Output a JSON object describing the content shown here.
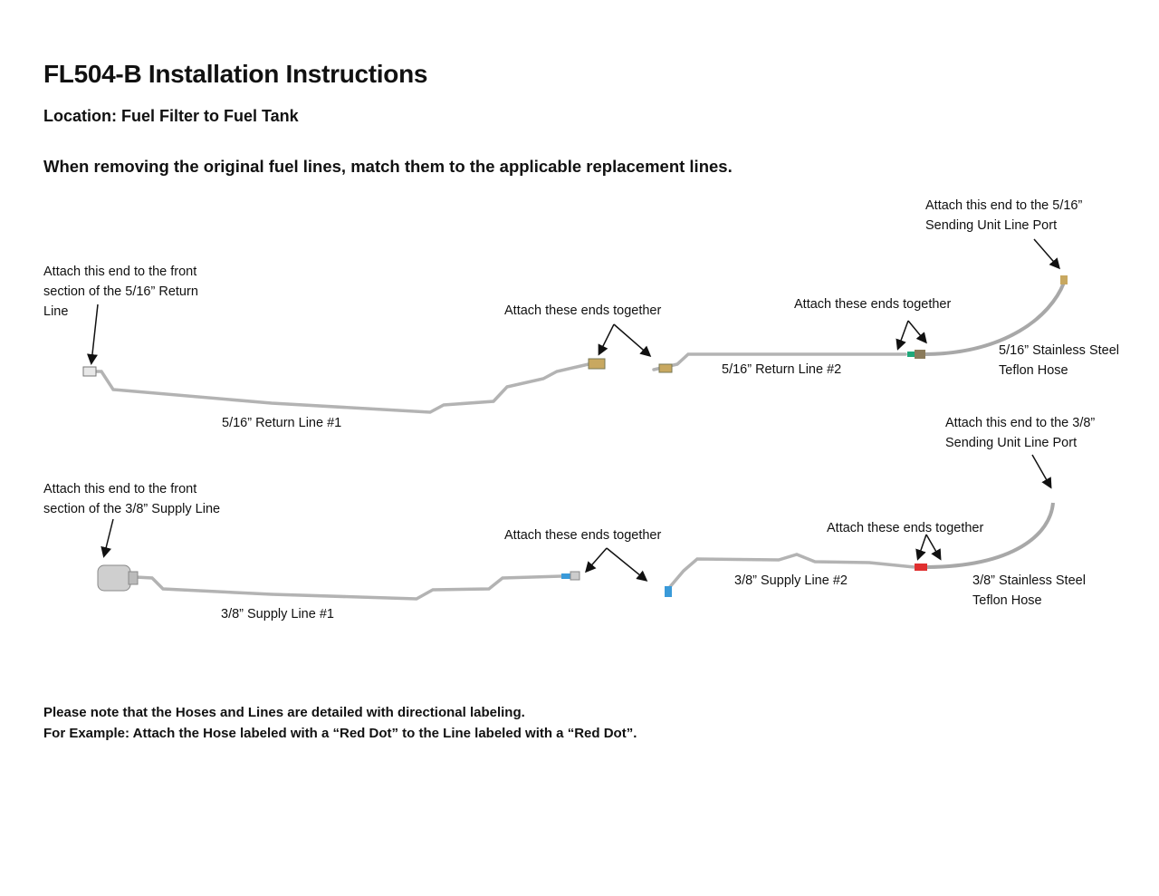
{
  "document": {
    "title": "FL504-B Installation Instructions",
    "location": "Location: Fuel Filter to Fuel Tank",
    "instruction": "When removing the original fuel lines, match them to the applicable replacement lines.",
    "notes": [
      "Please note that the Hoses and Lines are detailed with directional labeling.",
      "For Example: Attach the Hose labeled with a “Red Dot” to the Line labeled with a “Red Dot”."
    ]
  },
  "return_diagram": {
    "front_callout": [
      "Attach this end to the front",
      "section of the 5/16” Return",
      "Line"
    ],
    "join_callout_1": "Attach these ends together",
    "join_callout_2": "Attach  these ends together",
    "port_callout": [
      "Attach this end to the 5/16”",
      "Sending Unit Line Port"
    ],
    "line_1": "5/16” Return Line #1",
    "line_2": "5/16” Return Line #2",
    "hose": [
      "5/16” Stainless Steel",
      "Teflon Hose"
    ],
    "marker_color": "#1fa87a"
  },
  "supply_diagram": {
    "front_callout": [
      "Attach this end to the front",
      "section of the 3/8” Supply Line"
    ],
    "join_callout_1": "Attach these ends together",
    "join_callout_2": "Attach these ends together",
    "port_callout": [
      "Attach this end to the 3/8”",
      "Sending Unit Line Port"
    ],
    "line_1": "3/8” Supply Line #1",
    "line_2": "3/8” Supply Line #2",
    "hose": [
      "3/8” Stainless Steel",
      "Teflon Hose"
    ],
    "marker_color_line1": "#3a9ad9",
    "marker_color_hose": "#e03030"
  }
}
